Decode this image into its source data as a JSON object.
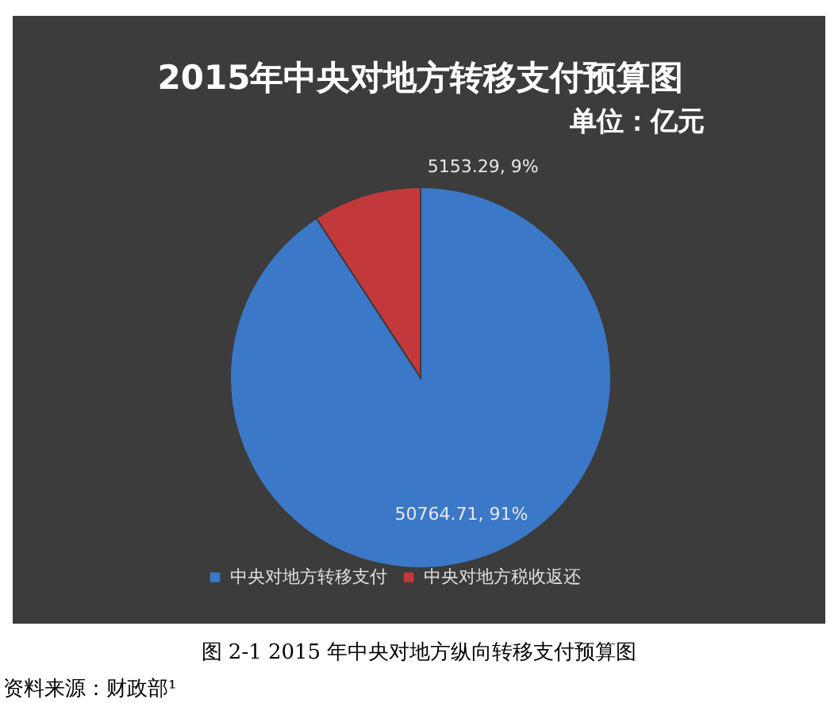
{
  "chart_data": {
    "type": "pie",
    "title": "2015年中央对地方转移支付预算图",
    "subtitle": "单位：亿元",
    "categories": [
      "中央对地方转移支付",
      "中央对地方税收返还"
    ],
    "values": [
      50764.71,
      5153.29
    ],
    "colors": [
      "#3b78c8",
      "#c3393b"
    ],
    "value_labels": [
      "50764.71, 91%",
      "5153.29, 9%"
    ],
    "legend": "bottom",
    "annotations": [
      "图 2-1 2015 年中央对地方纵向转移支付预算图",
      "资料来源：财政部¹"
    ]
  }
}
